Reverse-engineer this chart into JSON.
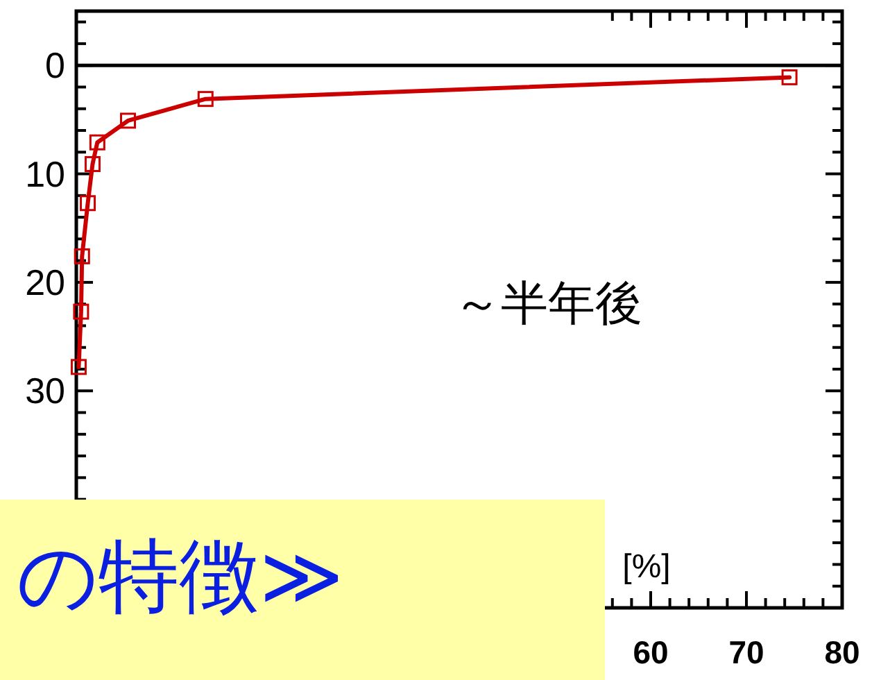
{
  "chart_data": {
    "type": "line",
    "xlabel": "[%]",
    "xlim": [
      0,
      80
    ],
    "ylim": [
      50,
      -5
    ],
    "xticks": [
      {
        "value": 56,
        "label": null
      },
      {
        "value": 58,
        "label": null
      },
      60,
      {
        "value": 62,
        "label": null
      },
      {
        "value": 64,
        "label": null
      },
      {
        "value": 66,
        "label": null
      },
      {
        "value": 68,
        "label": null
      },
      70,
      {
        "value": 72,
        "label": null
      },
      {
        "value": 74,
        "label": null
      },
      {
        "value": 76,
        "label": null
      },
      {
        "value": 78,
        "label": null
      },
      80
    ],
    "yticks": [
      {
        "value": -4,
        "label": null
      },
      {
        "value": -2,
        "label": null
      },
      0,
      {
        "value": 2,
        "label": null
      },
      {
        "value": 4,
        "label": null
      },
      {
        "value": 6,
        "label": null
      },
      {
        "value": 8,
        "label": null
      },
      10,
      {
        "value": 12,
        "label": null
      },
      {
        "value": 14,
        "label": null
      },
      {
        "value": 16,
        "label": null
      },
      {
        "value": 18,
        "label": null
      },
      20,
      {
        "value": 22,
        "label": null
      },
      {
        "value": 24,
        "label": null
      },
      {
        "value": 26,
        "label": null
      },
      {
        "value": 28,
        "label": null
      },
      30,
      {
        "value": 32,
        "label": null
      },
      {
        "value": 34,
        "label": null
      },
      {
        "value": 36,
        "label": null
      },
      {
        "value": 38,
        "label": null
      },
      {
        "value": 40,
        "label": null
      },
      {
        "value": 42,
        "label": null
      },
      {
        "value": 44,
        "label": null
      },
      {
        "value": 46,
        "label": null
      },
      {
        "value": 48,
        "label": null
      }
    ],
    "marker": "square",
    "line_style": "solid",
    "grid": false,
    "series": [
      {
        "color": "#cc0000",
        "x": [
          0.25,
          0.5,
          0.6,
          1.2,
          1.7,
          2.2,
          5.4,
          13.5,
          74.5
        ],
        "values": [
          27.8,
          22.7,
          17.6,
          12.7,
          9.1,
          7.1,
          5.1,
          3.1,
          1.1
        ]
      }
    ],
    "ref_lines": [
      {
        "axis": "y",
        "value": 0,
        "color": "#000000"
      }
    ],
    "annotations": [
      "～半年後",
      "の特徴≫"
    ]
  }
}
